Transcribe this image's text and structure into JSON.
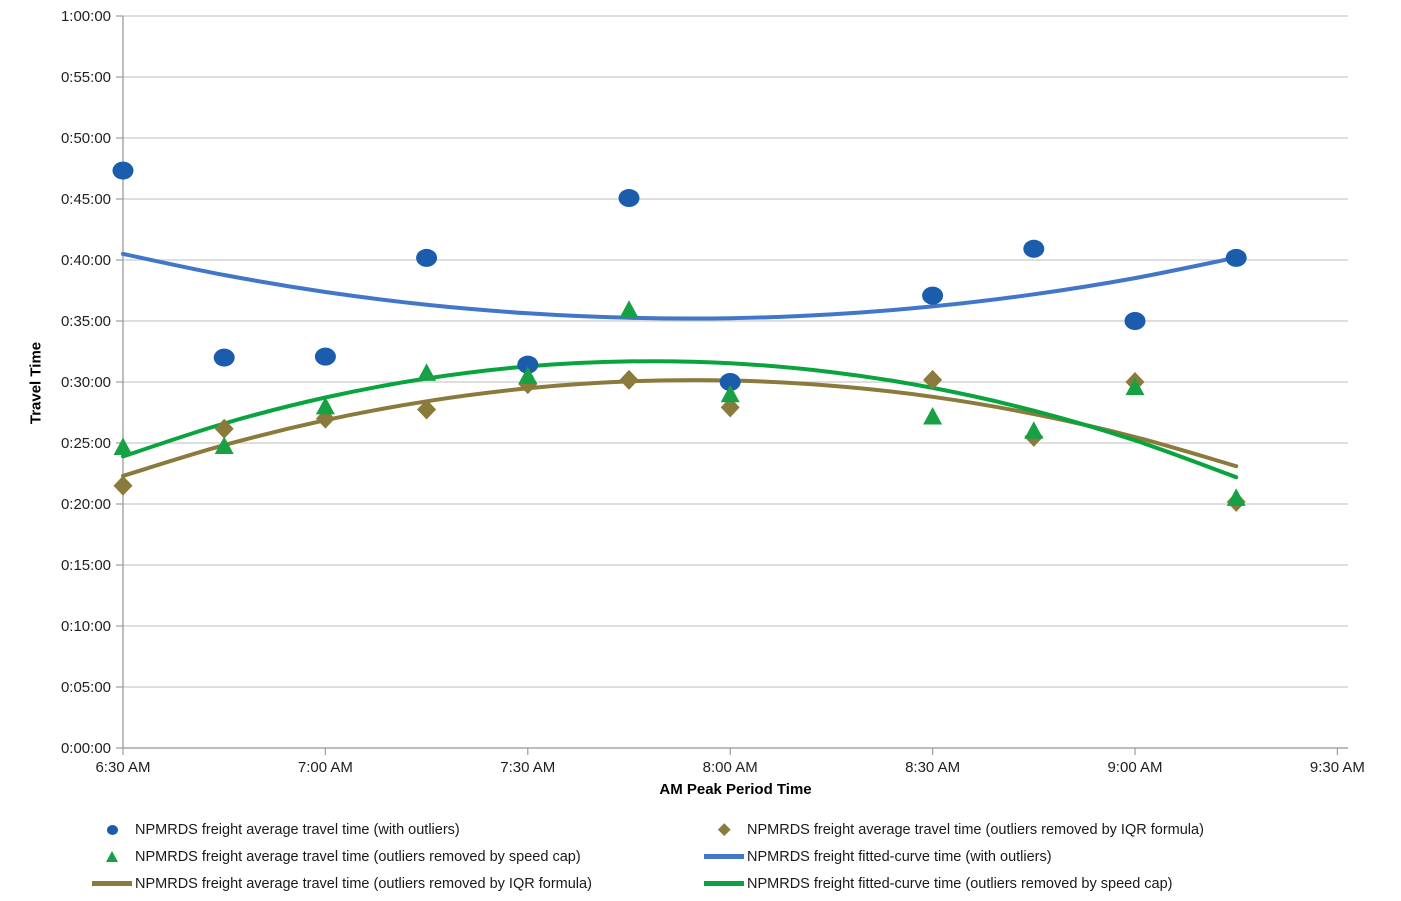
{
  "style": {
    "background": "#FFFFFF",
    "grid_color": "#C9C9C9",
    "axis_color": "#9C9C9C",
    "tick_text_color": "#212121",
    "blue_marker": "#1B5CAD",
    "blue_line": "#4176C8",
    "green_marker": "#17A044",
    "green_line": "#0AA43F",
    "olive": "#8A7A3C"
  },
  "chart_data": {
    "type": "scatter",
    "title": "",
    "grid": true,
    "legend_position": "bottom",
    "x_axis": {
      "label": "AM Peak Period Time",
      "ticks": [
        "6:30 AM",
        "7:00 AM",
        "7:30 AM",
        "8:00 AM",
        "8:30 AM",
        "9:00 AM",
        "9:30 AM"
      ],
      "tick_interval_minutes": 30,
      "range": [
        "6:30 AM",
        "9:30 AM"
      ]
    },
    "y_axis": {
      "label": "Travel Time",
      "ticks": [
        "0:00:00",
        "0:05:00",
        "0:10:00",
        "0:15:00",
        "0:20:00",
        "0:25:00",
        "0:30:00",
        "0:35:00",
        "0:40:00",
        "0:45:00",
        "0:50:00",
        "0:55:00",
        "1:00:00"
      ],
      "min_minutes": 0,
      "max_minutes": 60,
      "step_minutes": 5
    },
    "x_labels_scatter": [
      "6:30 AM",
      "6:45 AM",
      "7:00 AM",
      "7:15 AM",
      "7:30 AM",
      "7:45 AM",
      "8:00 AM",
      "8:30 AM",
      "8:45 AM",
      "9:00 AM",
      "9:15 AM"
    ],
    "x_hours_scatter": [
      0,
      0.25,
      0.5,
      0.75,
      1,
      1.25,
      1.5,
      2,
      2.25,
      2.5,
      2.75
    ],
    "x_hours_curve": [
      0,
      0.25,
      0.5,
      0.75,
      1,
      1.25,
      1.5,
      1.75,
      2,
      2.25,
      2.5,
      2.75
    ],
    "series": [
      {
        "key": "avg_with_outliers",
        "name": "NPMRDS freight average travel time (with outliers)",
        "kind": "scatter",
        "marker": "circle",
        "color": "#1B5CAD",
        "values_min": [
          47.33,
          32.0,
          32.08,
          40.17,
          31.42,
          45.08,
          30.0,
          37.08,
          40.92,
          35.0,
          40.17
        ],
        "value_labels": [
          "0:47:20",
          "0:32:00",
          "0:32:05",
          "0:40:10",
          "0:31:25",
          "0:45:05",
          "0:30:00",
          "0:37:05",
          "0:40:55",
          "0:35:00",
          "0:40:10"
        ]
      },
      {
        "key": "avg_iqr",
        "name": "NPMRDS freight average travel time (outliers removed by IQR formula)",
        "kind": "scatter",
        "marker": "diamond",
        "color": "#8A7A3C",
        "values_min": [
          21.5,
          26.17,
          27.0,
          27.75,
          29.83,
          30.17,
          27.92,
          30.17,
          25.5,
          30.0,
          20.17
        ],
        "value_labels": [
          "0:21:30",
          "0:26:10",
          "0:27:00",
          "0:27:45",
          "0:29:50",
          "0:30:10",
          "0:27:55",
          "0:30:10",
          "0:25:30",
          "0:30:00",
          "0:20:10"
        ]
      },
      {
        "key": "avg_speed_cap",
        "name": "NPMRDS freight average travel time (outliers removed by speed cap)",
        "kind": "scatter",
        "marker": "triangle",
        "color": "#17A044",
        "values_min": [
          24.67,
          24.75,
          28.0,
          30.75,
          30.5,
          35.92,
          29.0,
          27.17,
          26.0,
          29.58,
          20.5
        ],
        "value_labels": [
          "0:24:40",
          "0:24:45",
          "0:28:00",
          "0:30:45",
          "0:30:30",
          "0:35:55",
          "0:29:00",
          "0:27:10",
          "0:26:00",
          "0:29:35",
          "0:20:30"
        ]
      },
      {
        "key": "fit_with_outliers",
        "name": "NPMRDS freight fitted-curve time (with outliers)",
        "kind": "line",
        "color": "#4176C8",
        "values_min": [
          40.5,
          38.77,
          37.38,
          36.33,
          35.63,
          35.26,
          35.23,
          35.54,
          36.2,
          37.19,
          38.52,
          40.2
        ]
      },
      {
        "key": "fit_iqr",
        "name": "NPMRDS freight average travel time (outliers removed by IQR formula)",
        "kind": "line",
        "color": "#8A7A3C",
        "values_min": [
          22.3,
          24.83,
          26.87,
          28.42,
          29.48,
          30.05,
          30.12,
          29.7,
          28.79,
          27.38,
          25.49,
          23.1
        ]
      },
      {
        "key": "fit_speed_cap",
        "name": "NPMRDS freight fitted-curve time (outliers removed by speed cap)",
        "kind": "line",
        "color": "#0AA43F",
        "values_min": [
          23.9,
          26.6,
          28.73,
          30.29,
          31.28,
          31.69,
          31.54,
          30.81,
          29.52,
          27.65,
          25.21,
          22.2
        ]
      }
    ]
  },
  "legend": {
    "columns": [
      [
        {
          "marker": "circle",
          "color": "#1B5CAD",
          "label": "NPMRDS freight average travel time (with outliers)"
        },
        {
          "marker": "triangle",
          "color": "#17A044",
          "label": "NPMRDS freight average travel time (outliers removed by speed cap)"
        },
        {
          "marker": "line",
          "color": "#8A7A3C",
          "label": "NPMRDS freight average travel time (outliers removed by IQR formula)"
        }
      ],
      [
        {
          "marker": "diamond",
          "color": "#8A7A3C",
          "label": "NPMRDS freight average travel time (outliers removed by IQR formula)"
        },
        {
          "marker": "line",
          "color": "#4176C8",
          "label": "NPMRDS freight fitted-curve time (with outliers)"
        },
        {
          "marker": "line",
          "color": "#0AA43F",
          "label": "NPMRDS freight fitted-curve time (outliers removed by speed cap)"
        }
      ]
    ]
  }
}
